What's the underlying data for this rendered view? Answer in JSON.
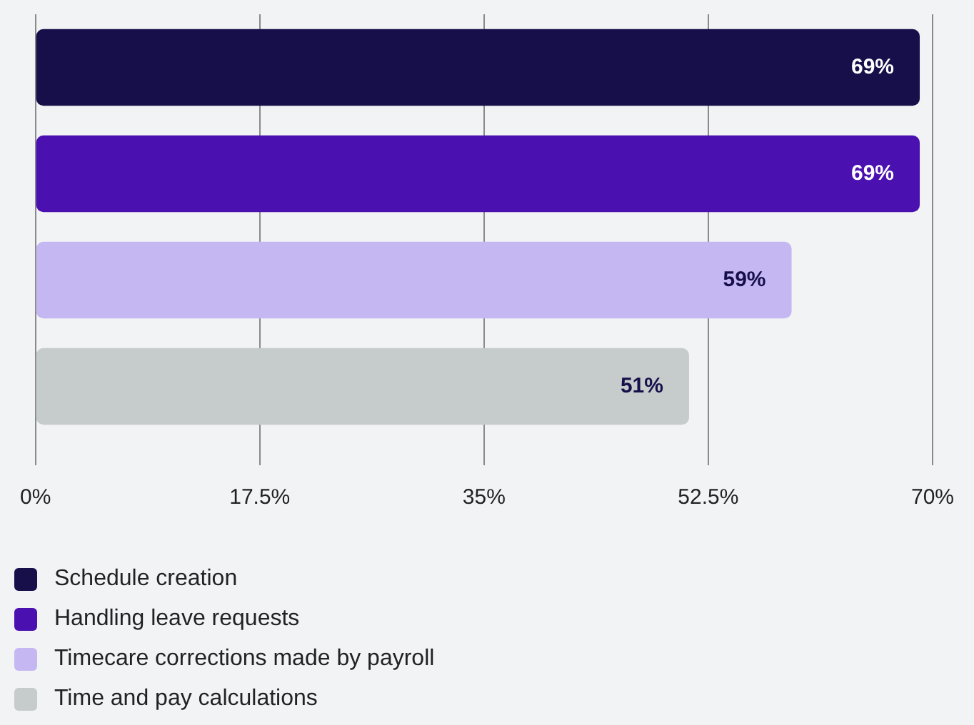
{
  "chart_data": {
    "type": "bar",
    "orientation": "horizontal",
    "categories": [
      null,
      null,
      null,
      null
    ],
    "series": [
      {
        "name": "Schedule creation",
        "color": "#170f4a",
        "values": [
          69,
          null,
          null,
          null
        ],
        "value_labels": [
          "69%",
          null,
          null,
          null
        ]
      },
      {
        "name": "Handling leave requests",
        "color": "#4a10b0",
        "values": [
          null,
          69,
          null,
          null
        ],
        "value_labels": [
          null,
          "69%",
          null,
          null
        ]
      },
      {
        "name": "Timecare corrections made by payroll",
        "color": "#c5b8f2",
        "values": [
          null,
          null,
          59,
          null
        ],
        "value_labels": [
          null,
          null,
          "59%",
          null
        ]
      },
      {
        "name": "Time and pay calculations",
        "color": "#c6cccb",
        "values": [
          null,
          null,
          null,
          51
        ],
        "value_labels": [
          null,
          null,
          null,
          "51%"
        ]
      }
    ],
    "xlim": [
      0,
      70
    ],
    "xticks": [
      {
        "value": 0,
        "label": "0%"
      },
      {
        "value": 17.5,
        "label": "17.5%"
      },
      {
        "value": 35,
        "label": "35%"
      },
      {
        "value": 52.5,
        "label": "52.5%"
      },
      {
        "value": 70,
        "label": "70%"
      }
    ],
    "grid": "x",
    "legend": "bottom"
  }
}
